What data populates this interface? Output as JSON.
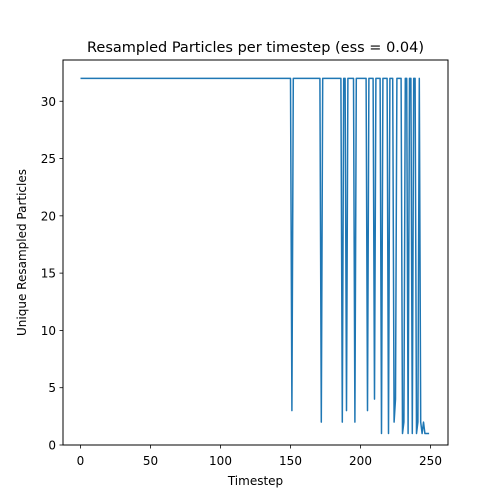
{
  "chart_data": {
    "type": "line",
    "title": "Resampled Particles per timestep (ess = 0.04)",
    "xlabel": "Timestep",
    "ylabel": "Unique Resampled Particles",
    "xlim": [
      -12.5,
      262.5
    ],
    "ylim": [
      0,
      33.6
    ],
    "xticks": [
      0,
      50,
      100,
      150,
      200,
      250
    ],
    "yticks": [
      0,
      5,
      10,
      15,
      20,
      25,
      30
    ],
    "grid": false,
    "legend": "none",
    "line_color": "#1f77b4",
    "series": [
      {
        "points": [
          [
            0,
            32
          ],
          [
            150,
            32
          ],
          [
            151,
            3
          ],
          [
            152,
            32
          ],
          [
            171,
            32
          ],
          [
            172,
            2
          ],
          [
            173,
            32
          ],
          [
            186,
            32
          ],
          [
            187,
            2
          ],
          [
            188,
            32
          ],
          [
            189,
            32
          ],
          [
            190,
            3
          ],
          [
            191,
            32
          ],
          [
            195,
            32
          ],
          [
            196,
            2
          ],
          [
            197,
            32
          ],
          [
            204,
            32
          ],
          [
            205,
            3
          ],
          [
            206,
            32
          ],
          [
            209,
            32
          ],
          [
            210,
            4
          ],
          [
            211,
            32
          ],
          [
            214,
            32
          ],
          [
            215,
            1
          ],
          [
            216,
            32
          ],
          [
            219,
            32
          ],
          [
            220,
            1
          ],
          [
            221,
            32
          ],
          [
            223,
            32
          ],
          [
            224,
            2
          ],
          [
            225,
            4
          ],
          [
            226,
            32
          ],
          [
            228,
            32
          ],
          [
            229,
            32
          ],
          [
            230,
            1
          ],
          [
            231,
            2
          ],
          [
            232,
            32
          ],
          [
            233,
            32
          ],
          [
            234,
            1
          ],
          [
            235,
            32
          ],
          [
            236,
            32
          ],
          [
            237,
            1
          ],
          [
            238,
            32
          ],
          [
            239,
            32
          ],
          [
            240,
            1
          ],
          [
            241,
            2
          ],
          [
            242,
            32
          ],
          [
            243,
            2
          ],
          [
            244,
            1
          ],
          [
            245,
            2
          ],
          [
            246,
            1
          ],
          [
            247,
            1
          ],
          [
            248,
            1
          ],
          [
            249,
            1
          ]
        ]
      }
    ]
  }
}
